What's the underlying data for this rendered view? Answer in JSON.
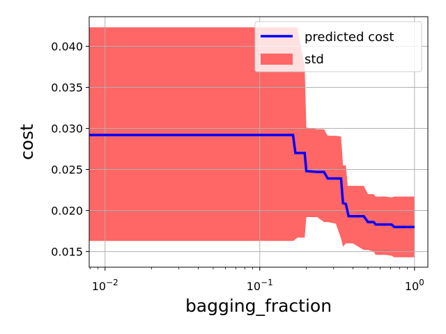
{
  "chart_data": {
    "type": "line",
    "xscale": "log",
    "xlim": [
      0.0079,
      1.22
    ],
    "ylim": [
      0.0131,
      0.0436
    ],
    "xlabel": "bagging_fraction",
    "ylabel": "cost",
    "grid": true,
    "legend_placement": "top-right",
    "xticks": [
      {
        "value": 0.01,
        "base": "10",
        "exp": "−2"
      },
      {
        "value": 0.1,
        "base": "10",
        "exp": "−1"
      },
      {
        "value": 1,
        "base": "10",
        "exp": "0"
      }
    ],
    "yticks": [
      {
        "value": 0.015,
        "label": "0.015"
      },
      {
        "value": 0.02,
        "label": "0.020"
      },
      {
        "value": 0.025,
        "label": "0.025"
      },
      {
        "value": 0.03,
        "label": "0.030"
      },
      {
        "value": 0.035,
        "label": "0.035"
      },
      {
        "value": 0.04,
        "label": "0.040"
      }
    ],
    "series": [
      {
        "name": "predicted cost",
        "kind": "line",
        "color": "#0000ff",
        "x": [
          0.0079,
          0.164,
          0.17,
          0.195,
          0.2,
          0.235,
          0.26,
          0.275,
          0.335,
          0.345,
          0.36,
          0.375,
          0.47,
          0.5,
          0.545,
          0.56,
          0.71,
          0.74,
          1.0
        ],
        "y": [
          0.0292,
          0.0292,
          0.027,
          0.027,
          0.0248,
          0.0247,
          0.0247,
          0.0239,
          0.0239,
          0.0209,
          0.0208,
          0.0193,
          0.0193,
          0.0186,
          0.0186,
          0.0183,
          0.0183,
          0.018,
          0.018
        ]
      },
      {
        "name": "std",
        "kind": "band",
        "color": "#ff6666",
        "x": [
          0.0079,
          0.1,
          0.165,
          0.175,
          0.195,
          0.2,
          0.235,
          0.26,
          0.275,
          0.31,
          0.335,
          0.345,
          0.36,
          0.37,
          0.4,
          0.47,
          0.5,
          0.545,
          0.56,
          0.65,
          0.71,
          0.74,
          1.0
        ],
        "upper": [
          0.0423,
          0.0423,
          0.0423,
          0.0423,
          0.0375,
          0.0301,
          0.0299,
          0.0299,
          0.0291,
          0.0291,
          0.029,
          0.0255,
          0.0255,
          0.023,
          0.023,
          0.023,
          0.022,
          0.022,
          0.0217,
          0.0217,
          0.0216,
          0.0217,
          0.0217
        ],
        "lower": [
          0.0163,
          0.0163,
          0.0163,
          0.0167,
          0.0167,
          0.0192,
          0.0192,
          0.0186,
          0.0186,
          0.0184,
          0.0166,
          0.0156,
          0.016,
          0.016,
          0.016,
          0.0152,
          0.0152,
          0.015,
          0.0146,
          0.0146,
          0.0145,
          0.0143,
          0.0143
        ]
      }
    ]
  }
}
